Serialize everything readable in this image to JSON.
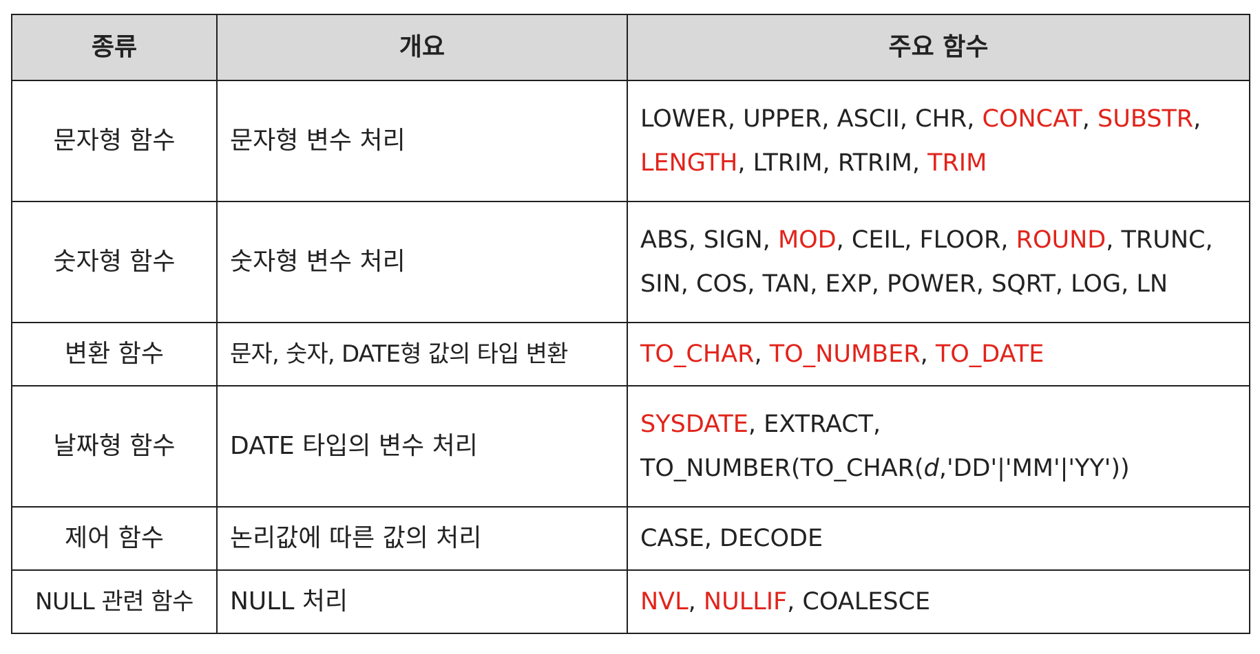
{
  "table": {
    "headers": {
      "kind": "종류",
      "summary": "개요",
      "functions": "주요 함수"
    },
    "accent_color": "#e2231a",
    "header_bg": "#d9d9d9",
    "rows": [
      {
        "kind": "문자형 함수",
        "summary": "문자형 변수 처리",
        "lines": [
          "LOWER, UPPER, ASCII, CHR, CONCAT, SUBSTR,",
          "LENGTH, LTRIM, RTRIM, TRIM"
        ],
        "highlighted": [
          "CONCAT",
          "SUBSTR",
          "LENGTH",
          "TRIM"
        ]
      },
      {
        "kind": "숫자형 함수",
        "summary": "숫자형 변수 처리",
        "lines": [
          "ABS, SIGN, MOD, CEIL, FLOOR, ROUND, TRUNC,",
          "SIN, COS, TAN, EXP, POWER, SQRT, LOG, LN"
        ],
        "highlighted": [
          "MOD",
          "ROUND"
        ]
      },
      {
        "kind": "변환 함수",
        "summary": "문자, 숫자, DATE형 값의 타입 변환",
        "lines": [
          "TO_CHAR, TO_NUMBER, TO_DATE"
        ],
        "highlighted": [
          "TO_CHAR",
          "TO_NUMBER",
          "TO_DATE"
        ]
      },
      {
        "kind": "날짜형 함수",
        "summary": "DATE 타입의 변수 처리",
        "lines": [
          "SYSDATE, EXTRACT,",
          "TO_NUMBER(TO_CHAR(d,'DD'|'MM'|'YY'))"
        ],
        "highlighted": [
          "SYSDATE"
        ],
        "italic": [
          "d"
        ]
      },
      {
        "kind": "제어 함수",
        "summary": "논리값에 따른 값의 처리",
        "lines": [
          "CASE, DECODE"
        ],
        "highlighted": []
      },
      {
        "kind": "NULL 관련 함수",
        "summary": "NULL 처리",
        "lines": [
          "NVL, NULLIF, COALESCE"
        ],
        "highlighted": [
          "NVL",
          "NULLIF"
        ]
      }
    ]
  }
}
